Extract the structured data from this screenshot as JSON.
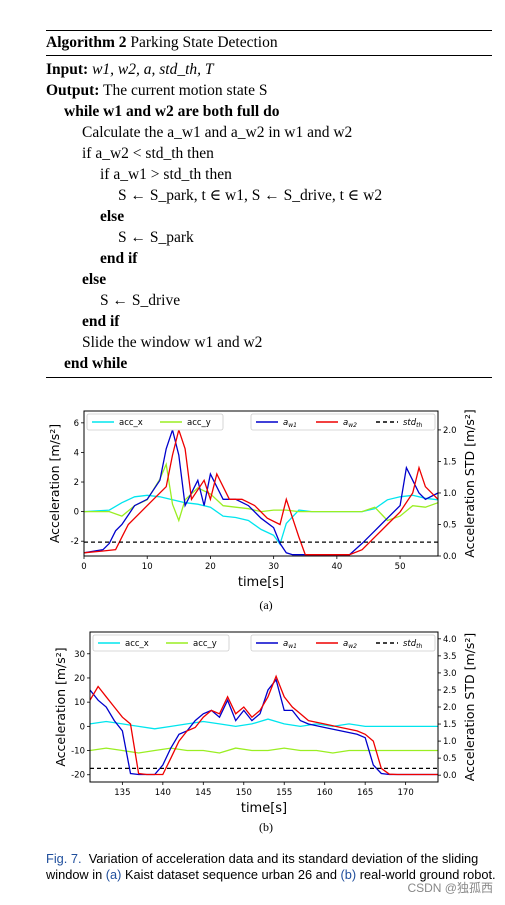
{
  "algorithm": {
    "title_prefix": "Algorithm 2",
    "title": "Parking State Detection",
    "input_label": "Input:",
    "input_value": "w1, w2, a, std_th, T",
    "output_label": "Output:",
    "output_value": "The current motion state S",
    "lines": [
      "while w1 and w2 are both full do",
      "Calculate the a_w1 and a_w2 in w1 and w2",
      "if a_w2 < std_th then",
      "if a_w1 > std_th then",
      "S ← S_park, t ∈ w1, S ← S_drive, t ∈ w2",
      "else",
      "S ← S_park",
      "end if",
      "else",
      "S ← S_drive",
      "end if",
      "Slide the window w1 and w2",
      "end while"
    ]
  },
  "chart_data": [
    {
      "type": "line",
      "id": "a",
      "caption": "(a)",
      "xlabel": "time[s]",
      "ylabel": "Acceleration [m/s²]",
      "ylabel_right": "Acceleration STD [m/s²]",
      "xlim": [
        0,
        56
      ],
      "ylim": [
        -3.0,
        6.8
      ],
      "ylim_right": [
        0.0,
        2.3
      ],
      "x_ticks": [
        0,
        10,
        20,
        30,
        40,
        50
      ],
      "y_ticks": [
        -2,
        0,
        2,
        4,
        6
      ],
      "y_ticks_right": [
        "0.0",
        "0.5",
        "1.0",
        "1.5",
        "2.0"
      ],
      "legend_left": [
        {
          "name": "acc_x",
          "color": "#00e5ee"
        },
        {
          "name": "acc_y",
          "color": "#9aee22"
        }
      ],
      "legend_right": [
        {
          "name": "a_w1",
          "color": "#0000cc"
        },
        {
          "name": "a_w2",
          "color": "#ee0000"
        },
        {
          "name": "std_th",
          "color": "#000000"
        }
      ],
      "series": [
        {
          "name": "acc_x",
          "axis": "left",
          "x": [
            0,
            4,
            6,
            8,
            10,
            12,
            14,
            16,
            18,
            20,
            22,
            24,
            26,
            28,
            30,
            31,
            32,
            34,
            36,
            40,
            42,
            44,
            46,
            48,
            50,
            52,
            54,
            56
          ],
          "y": [
            0,
            0.1,
            0.6,
            1.0,
            1.1,
            1.0,
            0.8,
            0.6,
            0.5,
            0.3,
            -0.3,
            -0.4,
            -0.6,
            -1.2,
            -1.6,
            -2.2,
            -0.8,
            0.1,
            0,
            0,
            0,
            0,
            0.2,
            0.8,
            1.0,
            1.1,
            0.9,
            0.8
          ]
        },
        {
          "name": "acc_y",
          "axis": "left",
          "x": [
            0,
            4,
            6,
            8,
            10,
            12,
            13,
            14,
            15,
            16,
            18,
            20,
            22,
            24,
            26,
            28,
            30,
            32,
            34,
            36,
            40,
            42,
            44,
            46,
            48,
            50,
            52,
            54,
            56
          ],
          "y": [
            0,
            0,
            -0.3,
            0.4,
            0.8,
            2.2,
            3.2,
            0.5,
            -0.6,
            0.8,
            1.6,
            1.2,
            0.4,
            0.3,
            0.2,
            0,
            0.1,
            0.1,
            0,
            0,
            0,
            0,
            0,
            0.3,
            -0.6,
            -0.3,
            0.4,
            0.3,
            0.6
          ]
        },
        {
          "name": "a_w1",
          "axis": "right",
          "x": [
            0,
            3,
            4,
            5,
            6,
            8,
            10,
            12,
            13,
            14,
            15,
            16,
            18,
            19,
            20,
            22,
            24,
            26,
            28,
            30,
            31,
            32,
            33,
            34,
            36,
            40,
            42,
            44,
            46,
            48,
            50,
            51,
            52,
            53,
            54,
            56
          ],
          "y": [
            0.05,
            0.1,
            0.2,
            0.4,
            0.5,
            0.8,
            0.9,
            1.2,
            1.7,
            2.0,
            1.6,
            0.8,
            1.2,
            0.8,
            1.3,
            0.9,
            0.9,
            0.8,
            0.6,
            0.45,
            0.2,
            0.05,
            0.02,
            0.02,
            0.02,
            0.02,
            0.02,
            0.2,
            0.4,
            0.6,
            0.8,
            1.4,
            1.2,
            1.0,
            0.9,
            1.0
          ]
        },
        {
          "name": "a_w2",
          "axis": "right",
          "x": [
            0,
            3,
            5,
            6,
            7,
            9,
            11,
            13,
            14,
            15,
            16,
            17,
            19,
            20,
            21,
            23,
            25,
            27,
            29,
            31,
            32,
            33,
            34,
            35,
            36,
            40,
            42,
            44,
            46,
            48,
            50,
            52,
            53,
            54,
            56
          ],
          "y": [
            0.05,
            0.08,
            0.1,
            0.3,
            0.5,
            0.7,
            0.9,
            1.1,
            1.6,
            2.0,
            1.7,
            0.9,
            1.2,
            0.9,
            1.3,
            0.9,
            0.9,
            0.8,
            0.6,
            0.5,
            0.9,
            0.6,
            0.3,
            0.02,
            0.02,
            0.02,
            0.02,
            0.1,
            0.3,
            0.5,
            0.7,
            1.0,
            1.4,
            1.1,
            0.9
          ]
        },
        {
          "name": "std_th",
          "axis": "right",
          "x": [
            0,
            56
          ],
          "y": [
            0.22,
            0.22
          ]
        }
      ]
    },
    {
      "type": "line",
      "id": "b",
      "caption": "(b)",
      "xlabel": "time[s]",
      "ylabel": "Acceleration [m/s²]",
      "ylabel_right": "Acceleration STD [m/s²]",
      "xlim": [
        131,
        174
      ],
      "ylim": [
        -23,
        39
      ],
      "ylim_right": [
        -0.2,
        4.2
      ],
      "x_ticks": [
        135,
        140,
        145,
        150,
        155,
        160,
        165,
        170
      ],
      "y_ticks": [
        -20,
        -10,
        0,
        10,
        20,
        30
      ],
      "y_ticks_right": [
        "0.0",
        "0.5",
        "1.0",
        "1.5",
        "2.0",
        "2.5",
        "3.0",
        "3.5",
        "4.0"
      ],
      "legend_left": [
        {
          "name": "acc_x",
          "color": "#00e5ee"
        },
        {
          "name": "acc_y",
          "color": "#9aee22"
        }
      ],
      "legend_right": [
        {
          "name": "a_w1",
          "color": "#0000cc"
        },
        {
          "name": "a_w2",
          "color": "#ee0000"
        },
        {
          "name": "std_th",
          "color": "#000000"
        }
      ],
      "series": [
        {
          "name": "acc_x",
          "axis": "left",
          "x": [
            131,
            133,
            135,
            137,
            139,
            141,
            143,
            145,
            147,
            149,
            151,
            153,
            155,
            157,
            159,
            161,
            163,
            165,
            167,
            169,
            171,
            174
          ],
          "y": [
            1,
            2,
            1,
            0,
            -1,
            0,
            1,
            2,
            1,
            0,
            1,
            3,
            1,
            0,
            1,
            0,
            1,
            0,
            0,
            0,
            0,
            0
          ]
        },
        {
          "name": "acc_y",
          "axis": "left",
          "x": [
            131,
            133,
            135,
            137,
            139,
            141,
            143,
            145,
            147,
            149,
            151,
            153,
            155,
            157,
            159,
            161,
            163,
            165,
            167,
            169,
            171,
            174
          ],
          "y": [
            -10,
            -9,
            -10,
            -11,
            -10,
            -9,
            -10,
            -10,
            -11,
            -9,
            -10,
            -10,
            -9,
            -10,
            -10,
            -11,
            -10,
            -10,
            -10,
            -10,
            -10,
            -10
          ]
        },
        {
          "name": "a_w1",
          "axis": "right",
          "x": [
            131,
            132,
            133,
            134,
            135,
            136,
            137,
            138,
            139,
            140,
            141,
            142,
            143,
            144,
            145,
            146,
            147,
            148,
            149,
            150,
            151,
            152,
            153,
            154,
            155,
            156,
            157,
            158,
            160,
            162,
            164,
            165,
            166,
            167,
            168,
            169,
            170,
            174
          ],
          "y": [
            2.5,
            2.2,
            2.0,
            1.6,
            1.3,
            0.05,
            0.02,
            0.02,
            0.02,
            0.3,
            0.8,
            1.2,
            1.3,
            1.6,
            1.8,
            1.9,
            1.7,
            2.2,
            1.6,
            1.9,
            1.6,
            1.8,
            2.5,
            2.8,
            1.9,
            1.9,
            1.6,
            1.5,
            1.4,
            1.3,
            1.2,
            1.1,
            0.3,
            0.05,
            0.02,
            0.02,
            0.02,
            0.02
          ]
        },
        {
          "name": "a_w2",
          "axis": "right",
          "x": [
            131,
            132,
            133,
            134,
            135,
            136,
            137,
            138,
            139,
            140,
            141,
            142,
            143,
            144,
            145,
            146,
            147,
            148,
            149,
            150,
            151,
            152,
            153,
            154,
            155,
            156,
            157,
            158,
            160,
            162,
            164,
            165,
            166,
            167,
            168,
            169,
            170,
            174
          ],
          "y": [
            2.2,
            2.6,
            2.3,
            2.0,
            1.7,
            1.5,
            0.05,
            0.02,
            0.02,
            0.02,
            0.5,
            1.0,
            1.3,
            1.4,
            1.7,
            1.9,
            1.8,
            2.3,
            1.8,
            2.0,
            1.7,
            1.9,
            2.3,
            2.9,
            2.3,
            2.0,
            1.8,
            1.6,
            1.5,
            1.4,
            1.3,
            1.2,
            1.0,
            0.2,
            0.03,
            0.02,
            0.02,
            0.02
          ]
        },
        {
          "name": "std_th",
          "axis": "right",
          "x": [
            131,
            174
          ],
          "y": [
            0.2,
            0.2
          ]
        }
      ]
    }
  ],
  "figure": {
    "label": "Fig. 7.",
    "caption_part1": "Variation of acceleration data and its standard deviation of the sliding window in ",
    "link_a": "(a)",
    "caption_part2": " Kaist dataset sequence urban 26 and ",
    "link_b": "(b)",
    "caption_part3": " real-world ground robot."
  },
  "watermark": "CSDN @独孤西"
}
